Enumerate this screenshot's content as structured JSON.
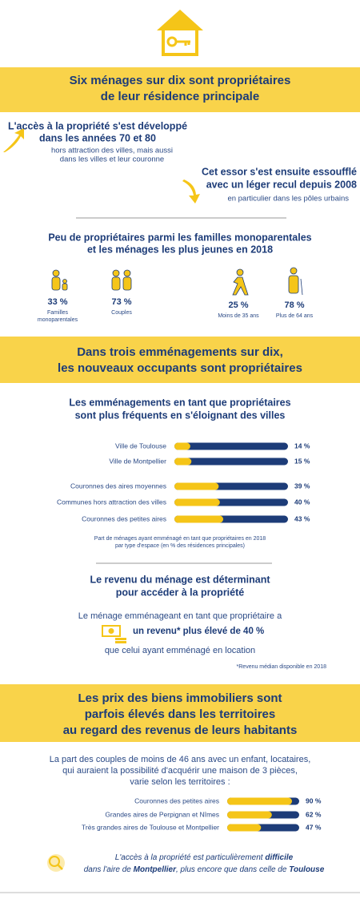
{
  "banner1": [
    "Six ménages sur dix sont propriétaires",
    "de leur résidence principale"
  ],
  "left_block": {
    "title": [
      "L'accès à la propriété s'est développé",
      "dans les années 70 et 80"
    ],
    "text": [
      "hors attraction des villes, mais aussi",
      "dans les villes et leur couronne"
    ]
  },
  "right_block": {
    "title": [
      "Cet essor s'est ensuite essoufflé",
      "avec un léger recul depuis 2008"
    ],
    "text": "en particulier dans les pôles urbains"
  },
  "households": {
    "title": [
      "Peu de propriétaires parmi les familles monoparentales",
      "et les ménages les plus jeunes en 2018"
    ],
    "items": [
      {
        "percent": "33 %",
        "label": [
          "Familles",
          "monoparentales"
        ]
      },
      {
        "percent": "73 %",
        "label": [
          "Couples"
        ]
      },
      {
        "percent": "25 %",
        "label": [
          "Moins de 35 ans"
        ]
      },
      {
        "percent": "78 %",
        "label": [
          "Plus de 64 ans"
        ]
      }
    ]
  },
  "banner2": [
    "Dans trois emménagements sur dix,",
    "les nouveaux occupants sont propriétaires"
  ],
  "moves": {
    "title": [
      "Les emménagements en tant que propriétaires",
      "sont plus fréquents en s'éloignant des villes"
    ],
    "categories": [
      "Ville de Toulouse",
      "Ville de Montpellier",
      "Couronnes des aires moyennes",
      "Communes hors attraction des villes",
      "Couronnes des petites aires"
    ],
    "values": [
      14,
      15,
      39,
      40,
      43
    ],
    "value_labels": [
      "14 %",
      "15 %",
      "39 %",
      "40 %",
      "43 %"
    ],
    "xlim": [
      0,
      100
    ],
    "note": [
      "Part de ménages ayant emménagé en tant que propriétaires en 2018",
      "par type d'espace (en % des résidences principales)"
    ]
  },
  "income": {
    "title": [
      "Le revenu du ménage est déterminant",
      "pour accéder à la propriété"
    ],
    "line1": "Le ménage emménageant en tant que propriétaire a",
    "line2": "un revenu* plus élevé de 40 %",
    "line3": "que celui ayant emménagé en location",
    "footnote": "*Revenu médian disponible en 2018"
  },
  "banner3": [
    "Les prix des biens immobiliers sont",
    "parfois élevés dans les territoires",
    "au regard des revenus de leurs habitants"
  ],
  "prices": {
    "text": [
      "La part des couples de moins de 46 ans avec un enfant, locataires,",
      "qui auraient la possibilité d'acquérir une maison de 3 pièces,",
      "varie selon les territoires :"
    ],
    "categories": [
      "Couronnes des petites aires",
      "Grandes aires de Perpignan et Nîmes",
      "Très grandes aires de Toulouse et Montpellier"
    ],
    "values": [
      90,
      62,
      47
    ],
    "value_labels": [
      "90 %",
      "62 %",
      "47 %"
    ],
    "xlim": [
      0,
      100
    ]
  },
  "closing": {
    "line1": [
      "L'accès à la propriété est particulièrement ",
      "difficile"
    ],
    "line2": [
      "dans l'aire de ",
      "Montpellier",
      ", plus encore que dans celle de ",
      "Toulouse"
    ]
  }
}
